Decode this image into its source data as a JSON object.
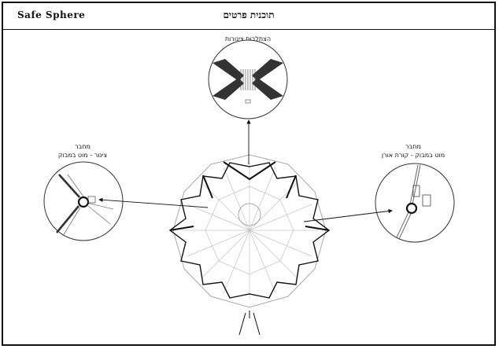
{
  "header": {
    "brand": "Safe Sphere",
    "title": "תוכנית פרטים"
  },
  "details": {
    "top": {
      "label": "הצתלבות צינורות"
    },
    "left": {
      "label_line1": "מחבר",
      "label_line2": "צינור - מוט במבוק"
    },
    "right": {
      "label_line1": "מחבר",
      "label_line2": "מוט במבוק - קורת אורן"
    }
  }
}
